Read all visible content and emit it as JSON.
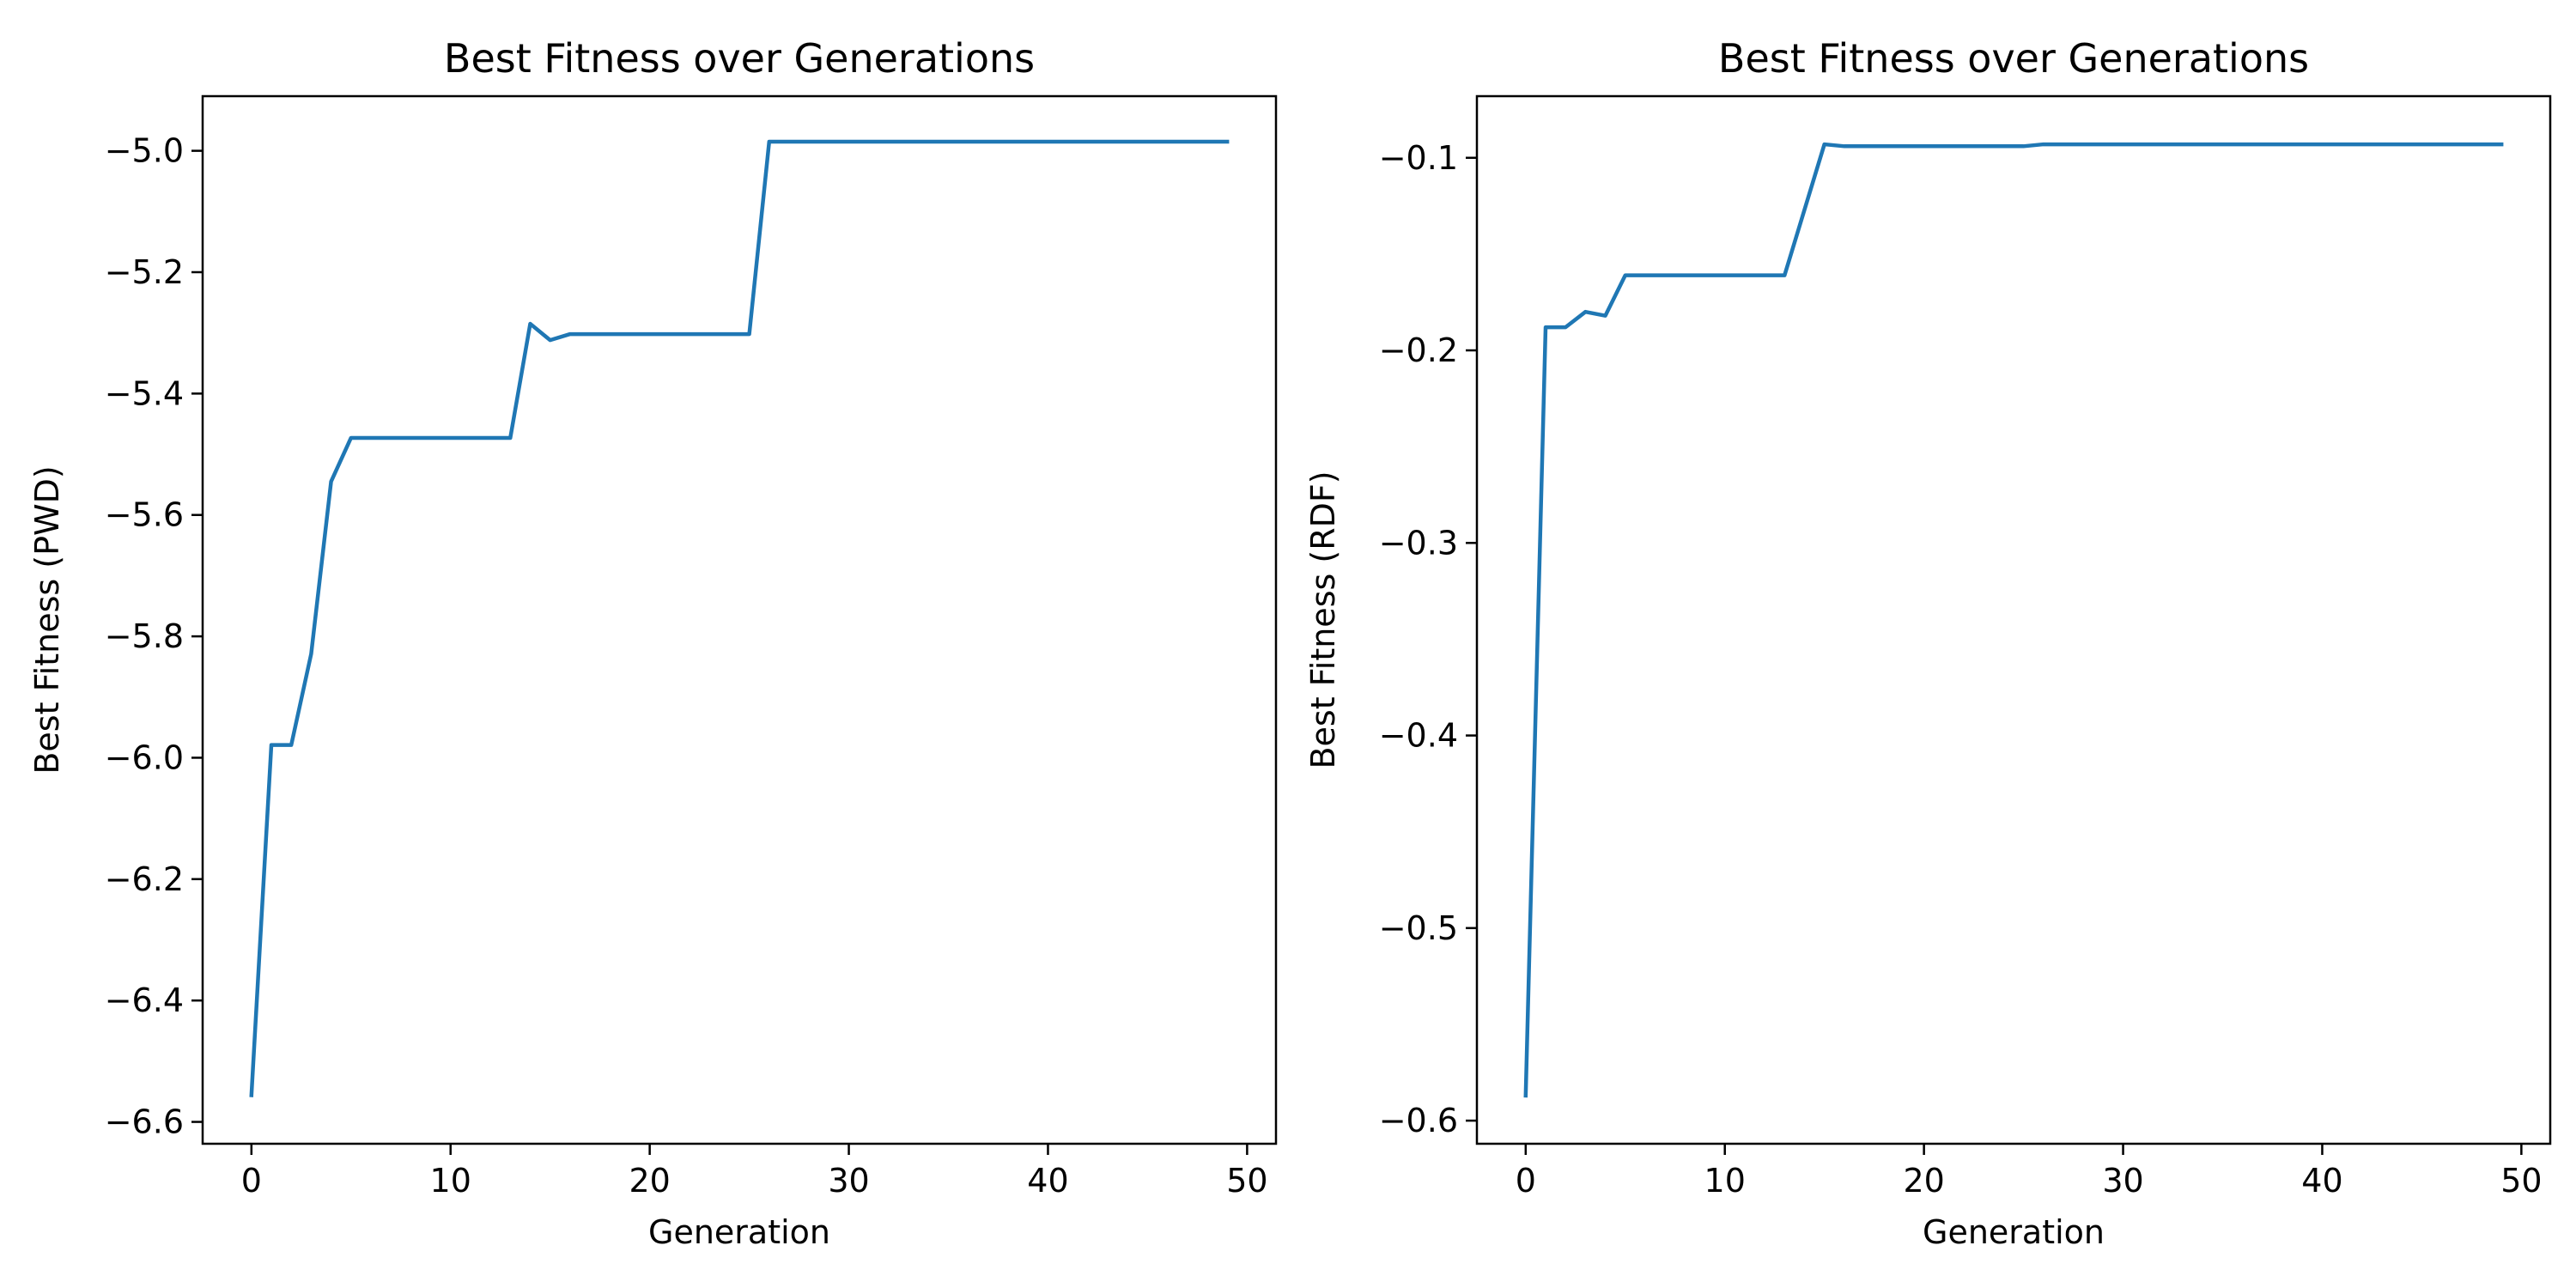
{
  "chart_data": [
    {
      "type": "line",
      "title": "Best Fitness over Generations",
      "xlabel": "Generation",
      "ylabel": "Best Fitness (PWD)",
      "xlim": [
        -2.45,
        51.45
      ],
      "ylim": [
        -6.636,
        -4.91
      ],
      "xticks": [
        0,
        10,
        20,
        30,
        40,
        50
      ],
      "yticks": [
        -6.6,
        -6.4,
        -6.2,
        -6.0,
        -5.8,
        -5.6,
        -5.4,
        -5.2,
        -5.0
      ],
      "grid": false,
      "color": "#1f77b4",
      "series": [
        {
          "x": [
            0,
            1,
            2,
            3,
            4,
            5,
            6,
            7,
            8,
            9,
            10,
            11,
            12,
            13,
            14,
            15,
            16,
            17,
            18,
            19,
            20,
            21,
            22,
            23,
            24,
            25,
            26,
            27,
            28,
            29,
            30,
            31,
            32,
            33,
            34,
            35,
            36,
            37,
            38,
            39,
            40,
            41,
            42,
            43,
            44,
            45,
            46,
            47,
            48,
            49
          ],
          "values": [
            -6.556,
            -5.979,
            -5.979,
            -5.829,
            -5.545,
            -5.473,
            -5.473,
            -5.473,
            -5.473,
            -5.473,
            -5.473,
            -5.473,
            -5.473,
            -5.473,
            -5.285,
            -5.312,
            -5.302,
            -5.302,
            -5.302,
            -5.302,
            -5.302,
            -5.302,
            -5.302,
            -5.302,
            -5.302,
            -5.302,
            -4.985,
            -4.985,
            -4.985,
            -4.985,
            -4.985,
            -4.985,
            -4.985,
            -4.985,
            -4.985,
            -4.985,
            -4.985,
            -4.985,
            -4.985,
            -4.985,
            -4.985,
            -4.985,
            -4.985,
            -4.985,
            -4.985,
            -4.985,
            -4.985,
            -4.985,
            -4.985,
            -4.985
          ]
        }
      ]
    },
    {
      "type": "line",
      "title": "Best Fitness over Generations",
      "xlabel": "Generation",
      "ylabel": "Best Fitness (RDF)",
      "xlim": [
        -2.45,
        51.45
      ],
      "ylim": [
        -0.612,
        -0.068
      ],
      "xticks": [
        0,
        10,
        20,
        30,
        40,
        50
      ],
      "yticks": [
        -0.6,
        -0.5,
        -0.4,
        -0.3,
        -0.2,
        -0.1
      ],
      "grid": false,
      "color": "#1f77b4",
      "series": [
        {
          "x": [
            0,
            1,
            2,
            3,
            4,
            5,
            6,
            7,
            8,
            9,
            10,
            11,
            12,
            13,
            14,
            15,
            16,
            17,
            18,
            19,
            20,
            21,
            22,
            23,
            24,
            25,
            26,
            27,
            28,
            29,
            30,
            31,
            32,
            33,
            34,
            35,
            36,
            37,
            38,
            39,
            40,
            41,
            42,
            43,
            44,
            45,
            46,
            47,
            48,
            49
          ],
          "values": [
            -0.587,
            -0.188,
            -0.188,
            -0.18,
            -0.182,
            -0.161,
            -0.161,
            -0.161,
            -0.161,
            -0.161,
            -0.161,
            -0.161,
            -0.161,
            -0.161,
            -0.127,
            -0.093,
            -0.094,
            -0.094,
            -0.094,
            -0.094,
            -0.094,
            -0.094,
            -0.094,
            -0.094,
            -0.094,
            -0.094,
            -0.093,
            -0.093,
            -0.093,
            -0.093,
            -0.093,
            -0.093,
            -0.093,
            -0.093,
            -0.093,
            -0.093,
            -0.093,
            -0.093,
            -0.093,
            -0.093,
            -0.093,
            -0.093,
            -0.093,
            -0.093,
            -0.093,
            -0.093,
            -0.093,
            -0.093,
            -0.093,
            -0.093
          ]
        }
      ]
    }
  ]
}
